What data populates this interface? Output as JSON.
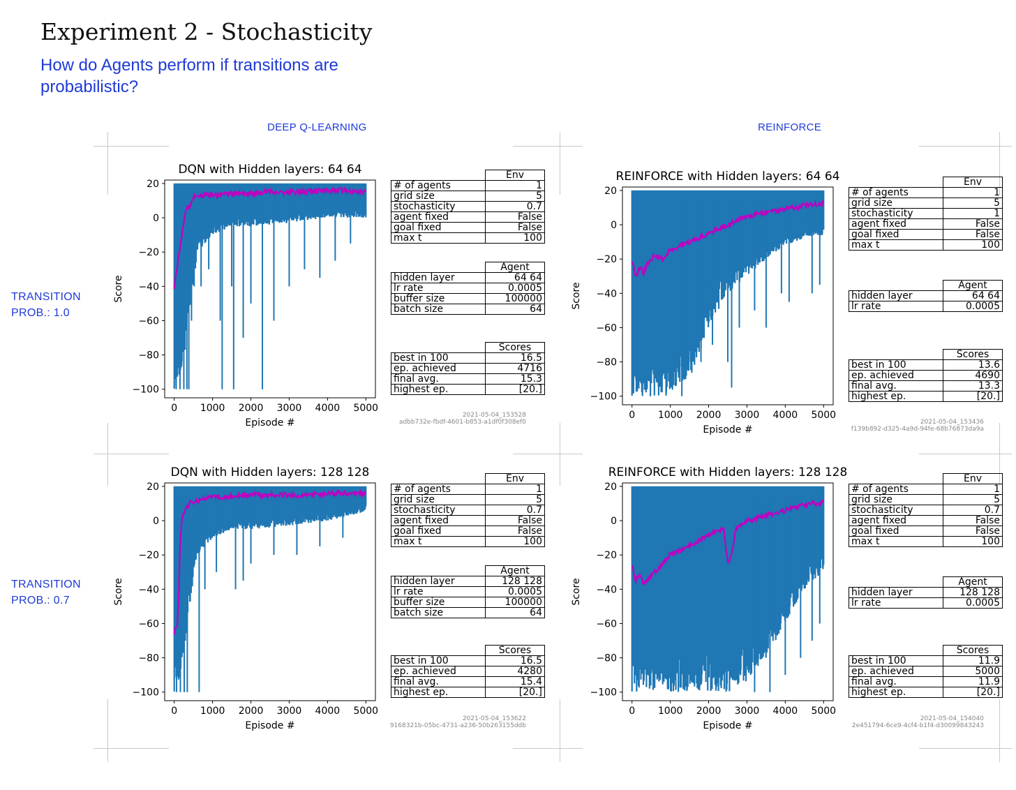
{
  "slide": {
    "title": "Experiment 2 - Stochasticity",
    "subtitle": "How do Agents perform if transitions are probabilistic?"
  },
  "columns": [
    "DEEP Q-LEARNING",
    "REINFORCE"
  ],
  "rows": [
    "TRANSITION\nPROB.: 1.0",
    "TRANSITION\nPROB.: 0.7"
  ],
  "colors": {
    "raw": "#1f77b4",
    "avg": "#c000c0",
    "accent_text": "#1e3ad6"
  },
  "chart_data": [
    {
      "type": "line",
      "title": "DQN with Hidden layers: 64 64",
      "xlabel": "Episode #",
      "ylabel": "Score",
      "xlim": [
        -250,
        5250
      ],
      "ylim": [
        -105,
        22
      ],
      "xticks": [
        0,
        1000,
        2000,
        3000,
        4000,
        5000
      ],
      "yticks": [
        20,
        0,
        -20,
        -40,
        -60,
        -80,
        -100
      ],
      "grid": false,
      "raw_band": {
        "x": [
          0,
          100,
          200,
          400,
          600,
          1000,
          1500,
          2000,
          3000,
          4000,
          5000
        ],
        "high": [
          20,
          20,
          20,
          20,
          20,
          20,
          20,
          20,
          20,
          20,
          20
        ],
        "low": [
          -100,
          -100,
          -90,
          -60,
          -20,
          -10,
          -5,
          -5,
          -3,
          0,
          0
        ]
      },
      "raw_spikes": [
        [
          50,
          -100
        ],
        [
          150,
          -100
        ],
        [
          250,
          -100
        ],
        [
          330,
          -100
        ],
        [
          380,
          -100
        ],
        [
          450,
          -60
        ],
        [
          520,
          -40
        ],
        [
          700,
          -40
        ],
        [
          900,
          -30
        ],
        [
          1200,
          -60
        ],
        [
          1250,
          -100
        ],
        [
          1500,
          -40
        ],
        [
          1550,
          -100
        ],
        [
          1800,
          -70
        ],
        [
          2000,
          -50
        ],
        [
          2300,
          -100
        ],
        [
          2600,
          -60
        ],
        [
          3000,
          -40
        ],
        [
          3400,
          -30
        ],
        [
          3800,
          -35
        ],
        [
          4200,
          -25
        ],
        [
          4600,
          -15
        ]
      ],
      "series": [
        {
          "name": "moving average",
          "x": [
            0,
            100,
            200,
            300,
            400,
            500,
            600,
            800,
            1000,
            1500,
            2000,
            2500,
            3000,
            3500,
            4000,
            4500,
            5000
          ],
          "values": [
            -40,
            -25,
            -10,
            5,
            7,
            12,
            13,
            13,
            13,
            14,
            14,
            15,
            15,
            15,
            16,
            16,
            15
          ]
        }
      ],
      "env_table": {
        "header": "Env",
        "rows": [
          [
            "# of agents",
            "1"
          ],
          [
            "grid size",
            "5"
          ],
          [
            "stochasticity",
            "0.7"
          ],
          [
            "agent fixed",
            "False"
          ],
          [
            "goal fixed",
            "False"
          ],
          [
            "max t",
            "100"
          ]
        ]
      },
      "agent_table": {
        "header": "Agent",
        "rows": [
          [
            "hidden layer",
            "64 64"
          ],
          [
            "lr rate",
            "0.0005"
          ],
          [
            "buffer size",
            "100000"
          ],
          [
            "batch size",
            "64"
          ]
        ]
      },
      "scores_table": {
        "header": "Scores",
        "rows": [
          [
            "best in 100",
            "16.5"
          ],
          [
            "ep. achieved",
            "4716"
          ],
          [
            "final avg.",
            "15.3"
          ],
          [
            "highest ep.",
            "[20.]"
          ]
        ]
      },
      "stamp": [
        "2021-05-04_153528",
        "adbb732e-fbdf-4601-b853-a1df0f308ef0"
      ]
    },
    {
      "type": "line",
      "title": "REINFORCE with Hidden layers: 64 64",
      "xlabel": "Episode #",
      "ylabel": "Score",
      "xlim": [
        -250,
        5250
      ],
      "ylim": [
        -105,
        22
      ],
      "xticks": [
        0,
        1000,
        2000,
        3000,
        4000,
        5000
      ],
      "yticks": [
        20,
        0,
        -20,
        -40,
        -60,
        -80,
        -100
      ],
      "grid": false,
      "raw_band": {
        "x": [
          0,
          500,
          1000,
          1500,
          2000,
          2500,
          3000,
          3500,
          4000,
          4500,
          5000
        ],
        "high": [
          20,
          20,
          20,
          20,
          20,
          20,
          20,
          20,
          20,
          20,
          20
        ],
        "low": [
          -100,
          -100,
          -100,
          -90,
          -60,
          -40,
          -30,
          -20,
          -12,
          -8,
          -6
        ]
      },
      "raw_spikes": [
        [
          1300,
          -100
        ],
        [
          1400,
          -90
        ],
        [
          1800,
          -80
        ],
        [
          2100,
          -70
        ],
        [
          2500,
          -80
        ],
        [
          2600,
          -95
        ],
        [
          2800,
          -60
        ],
        [
          3200,
          -50
        ],
        [
          3500,
          -60
        ],
        [
          3900,
          -40
        ],
        [
          4100,
          -45
        ],
        [
          4700,
          -40
        ],
        [
          4900,
          -35
        ]
      ],
      "series": [
        {
          "name": "moving average",
          "x": [
            0,
            100,
            200,
            300,
            400,
            600,
            800,
            1000,
            1500,
            2000,
            2500,
            3000,
            3500,
            4000,
            4500,
            5000
          ],
          "values": [
            -20,
            -30,
            -25,
            -28,
            -22,
            -18,
            -20,
            -15,
            -10,
            -5,
            0,
            5,
            7,
            9,
            11,
            13
          ]
        }
      ],
      "env_table": {
        "header": "Env",
        "rows": [
          [
            "# of agents",
            "1"
          ],
          [
            "grid size",
            "5"
          ],
          [
            "stochasticity",
            "1"
          ],
          [
            "agent fixed",
            "False"
          ],
          [
            "goal fixed",
            "False"
          ],
          [
            "max t",
            "100"
          ]
        ]
      },
      "agent_table": {
        "header": "Agent",
        "rows": [
          [
            "hidden layer",
            "64 64"
          ],
          [
            "lr rate",
            "0.0005"
          ]
        ]
      },
      "scores_table": {
        "header": "Scores",
        "rows": [
          [
            "best in 100",
            "13.6"
          ],
          [
            "ep. achieved",
            "4690"
          ],
          [
            "final avg.",
            "13.3"
          ],
          [
            "highest ep.",
            "[20.]"
          ]
        ]
      },
      "stamp": [
        "2021-05-04_153436",
        "f139b892-d325-4a9d-94fe-68b76873da9a"
      ]
    },
    {
      "type": "line",
      "title": "DQN with Hidden layers: 128 128",
      "xlabel": "Episode #",
      "ylabel": "Score",
      "xlim": [
        -250,
        5250
      ],
      "ylim": [
        -105,
        22
      ],
      "xticks": [
        0,
        1000,
        2000,
        3000,
        4000,
        5000
      ],
      "yticks": [
        20,
        0,
        -20,
        -40,
        -60,
        -80,
        -100
      ],
      "grid": false,
      "raw_band": {
        "x": [
          0,
          100,
          200,
          400,
          600,
          1000,
          1500,
          2000,
          3000,
          4000,
          5000
        ],
        "high": [
          20,
          20,
          20,
          20,
          20,
          20,
          20,
          20,
          20,
          20,
          20
        ],
        "low": [
          -100,
          -100,
          -90,
          -50,
          -20,
          -10,
          -5,
          -5,
          -3,
          0,
          5
        ]
      },
      "raw_spikes": [
        [
          60,
          -100
        ],
        [
          160,
          -100
        ],
        [
          260,
          -100
        ],
        [
          340,
          -100
        ],
        [
          650,
          -100
        ],
        [
          800,
          -40
        ],
        [
          1100,
          -30
        ],
        [
          1600,
          -40
        ],
        [
          1800,
          -35
        ],
        [
          2000,
          -25
        ],
        [
          2600,
          -20
        ],
        [
          3200,
          -20
        ],
        [
          3800,
          -15
        ],
        [
          4400,
          -10
        ]
      ],
      "series": [
        {
          "name": "moving average",
          "x": [
            0,
            80,
            120,
            160,
            200,
            300,
            400,
            600,
            800,
            1000,
            1500,
            2000,
            2500,
            3000,
            3500,
            4000,
            4500,
            5000
          ],
          "values": [
            -65,
            -60,
            -40,
            -10,
            2,
            6,
            10,
            12,
            13,
            14,
            14,
            15,
            15,
            15,
            15,
            16,
            16,
            16
          ]
        }
      ],
      "env_table": {
        "header": "Env",
        "rows": [
          [
            "# of agents",
            "1"
          ],
          [
            "grid size",
            "5"
          ],
          [
            "stochasticity",
            "0.7"
          ],
          [
            "agent fixed",
            "False"
          ],
          [
            "goal fixed",
            "False"
          ],
          [
            "max t",
            "100"
          ]
        ]
      },
      "agent_table": {
        "header": "Agent",
        "rows": [
          [
            "hidden layer",
            "128 128"
          ],
          [
            "lr rate",
            "0.0005"
          ],
          [
            "buffer size",
            "100000"
          ],
          [
            "batch size",
            "64"
          ]
        ]
      },
      "scores_table": {
        "header": "Scores",
        "rows": [
          [
            "best in 100",
            "16.5"
          ],
          [
            "ep. achieved",
            "4280"
          ],
          [
            "final avg.",
            "15.4"
          ],
          [
            "highest ep.",
            "[20.]"
          ]
        ]
      },
      "stamp": [
        "2021-05-04_153622",
        "9168321b-05bc-4731-a236-50b263155ddb"
      ]
    },
    {
      "type": "line",
      "title": "REINFORCE with Hidden layers: 128 128",
      "xlabel": "Episode #",
      "ylabel": "Score",
      "xlim": [
        -250,
        5250
      ],
      "ylim": [
        -105,
        22
      ],
      "xticks": [
        0,
        1000,
        2000,
        3000,
        4000,
        5000
      ],
      "yticks": [
        20,
        0,
        -20,
        -40,
        -60,
        -80,
        -100
      ],
      "grid": false,
      "raw_band": {
        "x": [
          0,
          500,
          1000,
          1500,
          2000,
          2500,
          3000,
          3500,
          4000,
          4500,
          5000
        ],
        "high": [
          20,
          20,
          20,
          20,
          20,
          20,
          20,
          20,
          20,
          20,
          20
        ],
        "low": [
          -100,
          -100,
          -100,
          -100,
          -100,
          -100,
          -95,
          -80,
          -60,
          -40,
          -30
        ]
      },
      "raw_spikes": [
        [
          3200,
          -100
        ],
        [
          3600,
          -100
        ],
        [
          4000,
          -90
        ],
        [
          4400,
          -80
        ],
        [
          4700,
          -70
        ],
        [
          4900,
          -60
        ]
      ],
      "series": [
        {
          "name": "moving average",
          "x": [
            0,
            100,
            200,
            300,
            400,
            600,
            800,
            1000,
            1500,
            2000,
            2400,
            2500,
            2600,
            2700,
            3000,
            3500,
            4000,
            4500,
            5000
          ],
          "values": [
            -25,
            -35,
            -30,
            -38,
            -35,
            -30,
            -25,
            -20,
            -15,
            -8,
            -5,
            -25,
            -20,
            -5,
            0,
            3,
            6,
            9,
            11
          ]
        }
      ],
      "env_table": {
        "header": "Env",
        "rows": [
          [
            "# of agents",
            "1"
          ],
          [
            "grid size",
            "5"
          ],
          [
            "stochasticity",
            "0.7"
          ],
          [
            "agent fixed",
            "False"
          ],
          [
            "goal fixed",
            "False"
          ],
          [
            "max t",
            "100"
          ]
        ]
      },
      "agent_table": {
        "header": "Agent",
        "rows": [
          [
            "hidden layer",
            "128 128"
          ],
          [
            "lr rate",
            "0.0005"
          ]
        ]
      },
      "scores_table": {
        "header": "Scores",
        "rows": [
          [
            "best in 100",
            "11.9"
          ],
          [
            "ep. achieved",
            "5000"
          ],
          [
            "final avg.",
            "11.9"
          ],
          [
            "highest ep.",
            "[20.]"
          ]
        ]
      },
      "stamp": [
        "2021-05-04_154040",
        "2e451794-6ce9-4cf4-b1f4-d30099843243"
      ]
    }
  ]
}
